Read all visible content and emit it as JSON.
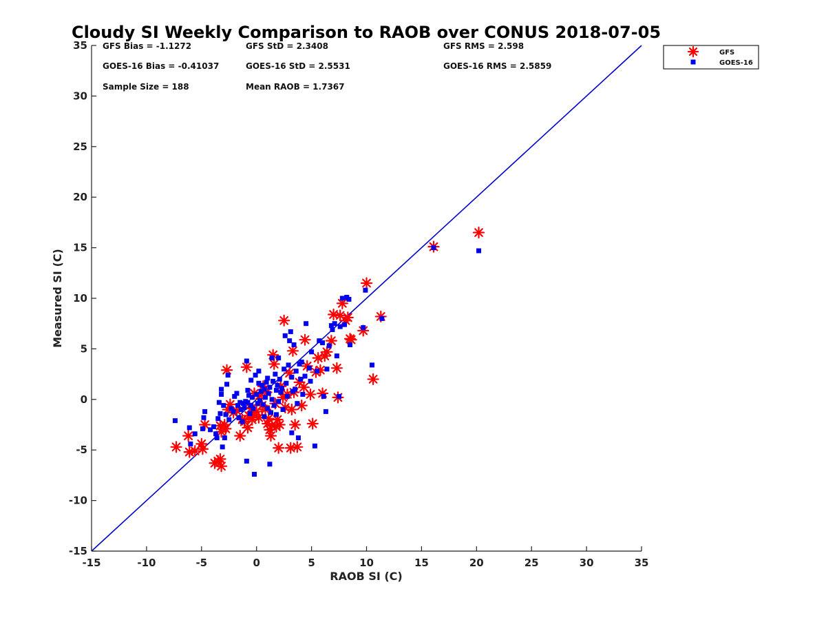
{
  "chart_data": {
    "type": "scatter",
    "title": "Cloudy SI Weekly Comparison to RAOB over CONUS 2018-07-05",
    "xlabel": "RAOB SI (C)",
    "ylabel": "Measured SI (C)",
    "xlim": [
      -15,
      35
    ],
    "ylim": [
      -15,
      35
    ],
    "xticks": [
      -15,
      -10,
      -5,
      0,
      5,
      10,
      15,
      20,
      25,
      30,
      35
    ],
    "yticks": [
      -15,
      -10,
      -5,
      0,
      5,
      10,
      15,
      20,
      25,
      30,
      35
    ],
    "grid": false,
    "legend_position": "outside-top-right",
    "reference_line": {
      "from": [
        -15,
        -15
      ],
      "to": [
        35,
        35
      ],
      "color": "#0000cc"
    },
    "stats": {
      "gfs_bias": "GFS Bias = -1.1272",
      "gfs_std": "GFS StD = 2.3408",
      "gfs_rms": "GFS RMS = 2.598",
      "goes_bias": "GOES-16 Bias = -0.41037",
      "goes_std": "GOES-16 StD = 2.5531",
      "goes_rms": "GOES-16 RMS = 2.5859",
      "sample_size": "Sample Size = 188",
      "mean_raob": "Mean RAOB = 1.7367"
    },
    "series": [
      {
        "name": "GFS",
        "marker": "asterisk",
        "color": "#ff0000",
        "points": [
          [
            -7.3,
            -4.7
          ],
          [
            -6.2,
            -3.6
          ],
          [
            -6.1,
            -5.2
          ],
          [
            -5.6,
            -5.1
          ],
          [
            -5.0,
            -4.4
          ],
          [
            -4.9,
            -4.9
          ],
          [
            -4.7,
            -2.5
          ],
          [
            -3.8,
            -6.3
          ],
          [
            -3.5,
            -6.1
          ],
          [
            -3.3,
            -5.9
          ],
          [
            -3.2,
            -6.6
          ],
          [
            -3.3,
            -2.6
          ],
          [
            -3.2,
            -3.2
          ],
          [
            -2.9,
            -2.5
          ],
          [
            -2.8,
            -2.9
          ],
          [
            -2.7,
            2.9
          ],
          [
            -2.6,
            -1.0
          ],
          [
            -2.4,
            -0.5
          ],
          [
            -2.1,
            -1.3
          ],
          [
            -1.8,
            -1.1
          ],
          [
            -1.5,
            -3.6
          ],
          [
            -1.3,
            -2.0
          ],
          [
            -1.1,
            -2.2
          ],
          [
            -0.9,
            3.2
          ],
          [
            -0.8,
            -2.8
          ],
          [
            -0.7,
            -1.6
          ],
          [
            -0.5,
            -0.9
          ],
          [
            -0.4,
            -2.0
          ],
          [
            -0.3,
            -1.5
          ],
          [
            -0.2,
            0.6
          ],
          [
            0.0,
            -1.2
          ],
          [
            0.2,
            -1.8
          ],
          [
            0.3,
            0.4
          ],
          [
            0.5,
            -0.6
          ],
          [
            0.6,
            1.3
          ],
          [
            0.8,
            -1.0
          ],
          [
            0.9,
            0.7
          ],
          [
            1.0,
            -2.4
          ],
          [
            1.1,
            -1.9
          ],
          [
            1.2,
            -3.0
          ],
          [
            1.3,
            -3.6
          ],
          [
            1.4,
            -2.6
          ],
          [
            1.5,
            4.4
          ],
          [
            1.6,
            3.5
          ],
          [
            1.7,
            -0.4
          ],
          [
            1.8,
            -2.7
          ],
          [
            1.9,
            -2.0
          ],
          [
            2.0,
            -4.8
          ],
          [
            2.1,
            -2.5
          ],
          [
            2.2,
            1.3
          ],
          [
            2.4,
            0.2
          ],
          [
            2.5,
            7.8
          ],
          [
            2.6,
            -0.8
          ],
          [
            2.8,
            0.5
          ],
          [
            3.0,
            2.6
          ],
          [
            3.1,
            -4.8
          ],
          [
            3.2,
            -1.0
          ],
          [
            3.3,
            4.8
          ],
          [
            3.4,
            0.7
          ],
          [
            3.5,
            -2.5
          ],
          [
            3.7,
            -4.7
          ],
          [
            3.9,
            1.7
          ],
          [
            4.1,
            -0.6
          ],
          [
            4.3,
            1.2
          ],
          [
            4.4,
            5.9
          ],
          [
            4.6,
            3.3
          ],
          [
            4.9,
            0.5
          ],
          [
            5.1,
            -2.4
          ],
          [
            5.4,
            2.7
          ],
          [
            5.6,
            4.1
          ],
          [
            5.8,
            2.9
          ],
          [
            6.0,
            0.6
          ],
          [
            6.2,
            4.3
          ],
          [
            6.4,
            4.7
          ],
          [
            6.8,
            5.8
          ],
          [
            7.0,
            8.4
          ],
          [
            7.3,
            3.1
          ],
          [
            7.4,
            0.2
          ],
          [
            7.6,
            8.3
          ],
          [
            7.8,
            9.5
          ],
          [
            8.1,
            7.8
          ],
          [
            8.3,
            8.1
          ],
          [
            8.5,
            6.0
          ],
          [
            8.6,
            5.9
          ],
          [
            9.7,
            6.8
          ],
          [
            10.0,
            11.5
          ],
          [
            10.6,
            2.0
          ],
          [
            11.3,
            8.2
          ],
          [
            16.1,
            15.1
          ],
          [
            20.2,
            16.5
          ]
        ]
      },
      {
        "name": "GOES-16",
        "marker": "square",
        "color": "#0000ee",
        "points": [
          [
            -7.4,
            -2.1
          ],
          [
            -6.1,
            -2.8
          ],
          [
            -6.0,
            -4.4
          ],
          [
            -5.6,
            -3.4
          ],
          [
            -4.9,
            -2.9
          ],
          [
            -4.8,
            -1.8
          ],
          [
            -4.7,
            -1.2
          ],
          [
            -4.2,
            -3.0
          ],
          [
            -3.9,
            -2.7
          ],
          [
            -3.7,
            -3.4
          ],
          [
            -3.6,
            -3.8
          ],
          [
            -3.5,
            -1.9
          ],
          [
            -3.4,
            -0.3
          ],
          [
            -3.3,
            -1.4
          ],
          [
            -3.2,
            0.5
          ],
          [
            -3.2,
            1.0
          ],
          [
            -3.1,
            -4.7
          ],
          [
            -3.0,
            -0.6
          ],
          [
            -2.9,
            -3.8
          ],
          [
            -2.8,
            -1.5
          ],
          [
            -2.7,
            1.5
          ],
          [
            -2.6,
            2.4
          ],
          [
            -2.5,
            -2.0
          ],
          [
            -2.3,
            -0.9
          ],
          [
            -2.1,
            -1.2
          ],
          [
            -2.0,
            0.3
          ],
          [
            -1.8,
            0.6
          ],
          [
            -1.7,
            -0.6
          ],
          [
            -1.6,
            -1.8
          ],
          [
            -1.5,
            -0.3
          ],
          [
            -1.4,
            -1.0
          ],
          [
            -1.3,
            -2.2
          ],
          [
            -1.2,
            -0.4
          ],
          [
            -1.1,
            -0.8
          ],
          [
            -1.0,
            -0.2
          ],
          [
            -0.9,
            3.8
          ],
          [
            -0.9,
            -6.1
          ],
          [
            -0.8,
            0.9
          ],
          [
            -0.8,
            -0.3
          ],
          [
            -0.7,
            0.4
          ],
          [
            -0.6,
            -1.4
          ],
          [
            -0.5,
            -0.6
          ],
          [
            -0.5,
            1.9
          ],
          [
            -0.4,
            0.2
          ],
          [
            -0.3,
            -0.9
          ],
          [
            -0.2,
            -7.4
          ],
          [
            -0.1,
            2.4
          ],
          [
            0.0,
            0.5
          ],
          [
            0.1,
            -0.4
          ],
          [
            0.2,
            1.6
          ],
          [
            0.2,
            2.8
          ],
          [
            0.3,
            -0.1
          ],
          [
            0.4,
            0.8
          ],
          [
            0.5,
            1.4
          ],
          [
            0.6,
            -0.5
          ],
          [
            0.7,
            1.0
          ],
          [
            0.7,
            -1.7
          ],
          [
            0.8,
            0.2
          ],
          [
            0.9,
            1.7
          ],
          [
            1.0,
            2.1
          ],
          [
            1.0,
            -0.9
          ],
          [
            1.1,
            0.6
          ],
          [
            1.2,
            -6.4
          ],
          [
            1.2,
            1.2
          ],
          [
            1.3,
            -1.3
          ],
          [
            1.4,
            4.1
          ],
          [
            1.4,
            0.0
          ],
          [
            1.5,
            1.8
          ],
          [
            1.6,
            -0.6
          ],
          [
            1.7,
            2.5
          ],
          [
            1.8,
            0.9
          ],
          [
            1.8,
            -1.5
          ],
          [
            1.9,
            1.4
          ],
          [
            2.0,
            4.1
          ],
          [
            2.0,
            -0.2
          ],
          [
            2.1,
            2.0
          ],
          [
            2.2,
            0.7
          ],
          [
            2.3,
            1.1
          ],
          [
            2.4,
            -1.0
          ],
          [
            2.5,
            3.0
          ],
          [
            2.6,
            6.3
          ],
          [
            2.7,
            1.6
          ],
          [
            2.8,
            0.3
          ],
          [
            2.9,
            3.4
          ],
          [
            3.0,
            5.8
          ],
          [
            3.1,
            6.7
          ],
          [
            3.2,
            2.2
          ],
          [
            3.2,
            -3.3
          ],
          [
            3.3,
            0.8
          ],
          [
            3.4,
            5.4
          ],
          [
            3.5,
            1.0
          ],
          [
            3.6,
            2.8
          ],
          [
            3.7,
            -0.4
          ],
          [
            3.8,
            -3.8
          ],
          [
            3.9,
            3.5
          ],
          [
            4.0,
            2.0
          ],
          [
            4.1,
            3.7
          ],
          [
            4.2,
            0.5
          ],
          [
            4.4,
            2.3
          ],
          [
            4.5,
            7.5
          ],
          [
            4.8,
            3.1
          ],
          [
            4.9,
            1.8
          ],
          [
            5.0,
            4.7
          ],
          [
            5.3,
            -4.6
          ],
          [
            5.5,
            2.8
          ],
          [
            5.7,
            5.8
          ],
          [
            6.0,
            5.6
          ],
          [
            6.1,
            0.3
          ],
          [
            6.3,
            -1.2
          ],
          [
            6.4,
            3.0
          ],
          [
            6.6,
            5.3
          ],
          [
            6.8,
            7.3
          ],
          [
            6.9,
            6.9
          ],
          [
            7.1,
            7.5
          ],
          [
            7.3,
            4.3
          ],
          [
            7.5,
            0.3
          ],
          [
            7.6,
            7.2
          ],
          [
            7.8,
            10.0
          ],
          [
            8.0,
            7.4
          ],
          [
            8.2,
            10.1
          ],
          [
            8.4,
            9.9
          ],
          [
            8.5,
            5.4
          ],
          [
            9.7,
            7.1
          ],
          [
            9.9,
            10.8
          ],
          [
            10.5,
            3.4
          ],
          [
            11.4,
            8.0
          ],
          [
            16.1,
            15.0
          ],
          [
            20.2,
            14.7
          ]
        ]
      }
    ]
  }
}
